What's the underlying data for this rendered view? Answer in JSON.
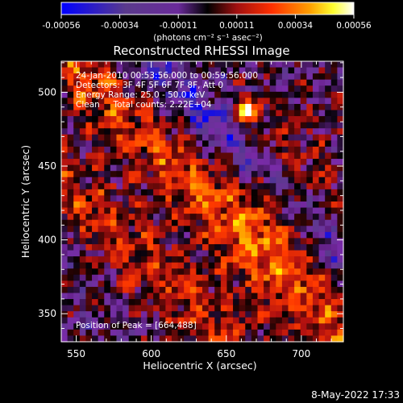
{
  "chart_data": {
    "type": "heatmap",
    "title": "Reconstructed RHESSI Image",
    "xlabel": "Heliocentric X (arcsec)",
    "ylabel": "Heliocentric Y (arcsec)",
    "xlim": [
      540,
      728
    ],
    "ylim": [
      331,
      521
    ],
    "x_ticks": [
      "550",
      "600",
      "650",
      "700"
    ],
    "y_ticks": [
      "350",
      "400",
      "450",
      "500"
    ],
    "colorbar": {
      "range": [
        -0.00056,
        0.00056
      ],
      "tick_labels": [
        "-0.00056",
        "-0.00034",
        "-0.00011",
        "0.00011",
        "0.00034",
        "0.00056"
      ],
      "unit_label": "(photons cm⁻² s⁻¹ asec⁻²)"
    },
    "annotations": [
      "24-Jan-2010 00:53:56.000 to 00:59:56.000",
      "Detectors: 3F 4F 5F 6F 7F 8F, Att 0",
      "Energy Range: 25.0 - 50.0 keV",
      "Clean     Total counts: 2.22E+04"
    ],
    "peak_label": "Position of Peak = [664,488]",
    "peak_position": [
      664,
      488
    ],
    "colormap_stops": [
      "#0000ff",
      "#5a3a8c",
      "#7a2aa8",
      "#000000",
      "#b01010",
      "#ff3a00",
      "#ffa000",
      "#ffff00",
      "#ffffff"
    ]
  },
  "footer": {
    "date": "8-May-2022 17:33"
  }
}
